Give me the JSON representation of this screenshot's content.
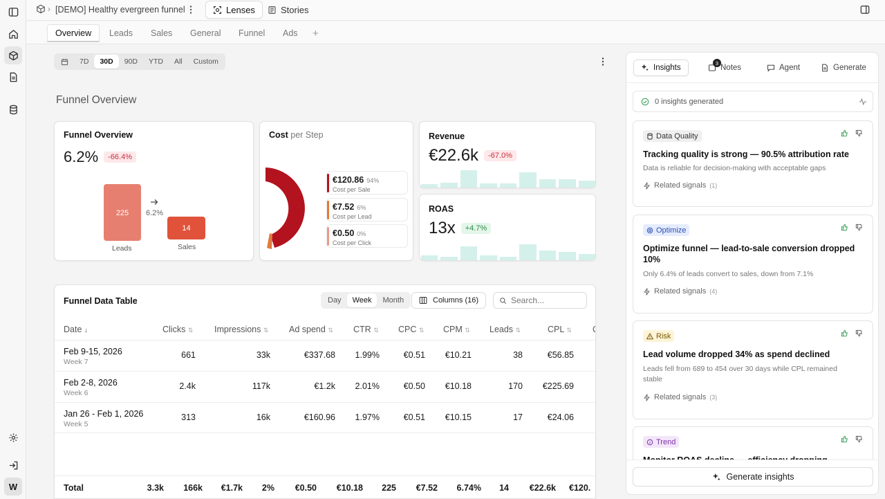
{
  "topbar": {
    "breadcrumb_project": "[DEMO] Healthy evergreen funnel",
    "tabs": [
      {
        "label": "Lenses"
      },
      {
        "label": "Stories"
      }
    ]
  },
  "view_tabs": [
    "Overview",
    "Leads",
    "Sales",
    "General",
    "Funnel",
    "Ads"
  ],
  "date_range": [
    "7D",
    "30D",
    "90D",
    "YTD",
    "All",
    "Custom"
  ],
  "page_title": "Funnel Overview",
  "funnel_card": {
    "title": "Funnel Overview",
    "value": "6.2%",
    "change": "-66.4%",
    "leads_value": "225",
    "leads_label": "Leads",
    "conversion": "6.2%",
    "sales_value": "14",
    "sales_label": "Sales"
  },
  "cost_card": {
    "title": "Cost",
    "title_suffix": "per Step",
    "items": [
      {
        "value": "€120.86",
        "pct": "94%",
        "label": "Cost per Sale",
        "color": "#b3121f"
      },
      {
        "value": "€7.52",
        "pct": "6%",
        "label": "Cost per Lead",
        "color": "#e07a3c"
      },
      {
        "value": "€0.50",
        "pct": "0%",
        "label": "Cost per Click",
        "color": "#e99a8b"
      }
    ]
  },
  "revenue_card": {
    "title": "Revenue",
    "value": "€22.6k",
    "change": "-67.0%",
    "bars": [
      0.2,
      0.25,
      0.95,
      0.22,
      0.22,
      0.85,
      0.45,
      0.45,
      0.38
    ]
  },
  "roas_card": {
    "title": "ROAS",
    "value": "13x",
    "change": "+4.7%",
    "bars": [
      0.25,
      0.2,
      0.75,
      0.25,
      0.2,
      0.9,
      0.55,
      0.45,
      0.35
    ]
  },
  "table": {
    "title": "Funnel Data Table",
    "granularity": [
      "Day",
      "Week",
      "Month"
    ],
    "columns_button": "Columns (16)",
    "search_placeholder": "Search...",
    "headers": [
      "Date",
      "Clicks",
      "Impressions",
      "Ad spend",
      "CTR",
      "CPC",
      "CPM",
      "Leads",
      "CPL",
      "C"
    ],
    "rows": [
      {
        "date": "Feb 9-15, 2026",
        "week": "Week 7",
        "cells": [
          "661",
          "33k",
          "€337.68",
          "1.99%",
          "€0.51",
          "€10.21",
          "38",
          "€56.85"
        ]
      },
      {
        "date": "Feb 2-8, 2026",
        "week": "Week 6",
        "cells": [
          "2.4k",
          "117k",
          "€1.2k",
          "2.01%",
          "€0.50",
          "€10.18",
          "170",
          "€225.69"
        ]
      },
      {
        "date": "Jan 26 - Feb 1, 2026",
        "week": "Week 5",
        "cells": [
          "313",
          "16k",
          "€160.96",
          "1.97%",
          "€0.51",
          "€10.15",
          "17",
          "€24.06"
        ]
      }
    ],
    "total_label": "Total",
    "totals": [
      "3.3k",
      "166k",
      "€1.7k",
      "2%",
      "€0.50",
      "€10.18",
      "225",
      "€7.52",
      "6.74%",
      "14",
      "€22.6k",
      "€120."
    ]
  },
  "panel": {
    "tabs": [
      {
        "label": "Insights"
      },
      {
        "label": "Notes",
        "badge": "3"
      },
      {
        "label": "Agent"
      },
      {
        "label": "Generate"
      }
    ],
    "status": "0 insights generated",
    "insights": [
      {
        "tag": "Data Quality",
        "title": "Tracking quality is strong — 90.5% attribution rate",
        "desc": "Data is reliable for decision-making with acceptable gaps",
        "signals": "Related signals",
        "count": "(1)"
      },
      {
        "tag": "Optimize",
        "title": "Optimize funnel — lead-to-sale conversion dropped 10%",
        "desc": "Only 6.4% of leads convert to sales, down from 7.1%",
        "signals": "Related signals",
        "count": "(4)"
      },
      {
        "tag": "Risk",
        "title": "Lead volume dropped 34% as spend declined",
        "desc": "Leads fell from 689 to 454 over 30 days while CPL remained stable",
        "signals": "Related signals",
        "count": "(3)"
      },
      {
        "tag": "Trend",
        "title": "Monitor ROAS decline — efficiency dropping despite",
        "desc": "",
        "signals": "",
        "count": ""
      }
    ],
    "generate_button": "Generate insights"
  },
  "avatar": "W"
}
